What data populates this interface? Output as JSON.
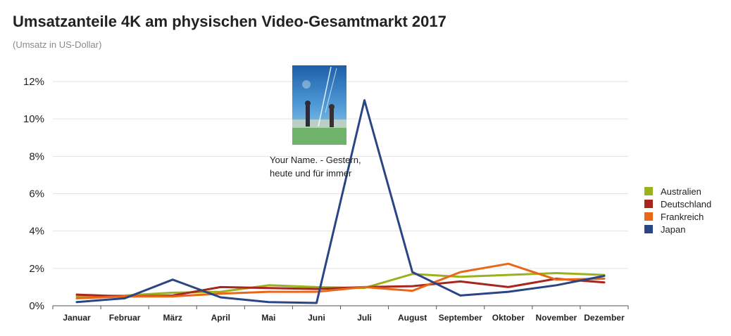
{
  "chart_data": {
    "type": "line",
    "title": "Umsatzanteile 4K am physischen Video-Gesamtmarkt 2017",
    "subtitle": "(Umsatz in US-Dollar)",
    "xlabel": "",
    "ylabel": "",
    "categories": [
      "Januar",
      "Februar",
      "März",
      "April",
      "Mai",
      "Juni",
      "Juli",
      "August",
      "September",
      "Oktober",
      "November",
      "Dezember"
    ],
    "y_ticks": [
      "0%",
      "2%",
      "4%",
      "6%",
      "8%",
      "10%",
      "12%"
    ],
    "ylim": [
      0,
      12
    ],
    "grid": true,
    "legend_position": "right",
    "series": [
      {
        "name": "Australien",
        "color": "#9bb21e",
        "values": [
          0.5,
          0.55,
          0.7,
          0.75,
          1.1,
          1.0,
          0.95,
          1.7,
          1.55,
          1.65,
          1.75,
          1.65
        ]
      },
      {
        "name": "Deutschland",
        "color": "#a8261d",
        "values": [
          0.6,
          0.5,
          0.55,
          1.0,
          0.95,
          0.9,
          1.0,
          1.05,
          1.3,
          1.0,
          1.45,
          1.25
        ]
      },
      {
        "name": "Frankreich",
        "color": "#e8681a",
        "values": [
          0.4,
          0.5,
          0.5,
          0.65,
          0.75,
          0.75,
          1.0,
          0.8,
          1.8,
          2.25,
          1.4,
          1.45
        ]
      },
      {
        "name": "Japan",
        "color": "#2a4586",
        "values": [
          0.2,
          0.4,
          1.4,
          0.45,
          0.2,
          0.15,
          11.0,
          1.8,
          0.55,
          0.75,
          1.1,
          1.6
        ]
      }
    ],
    "annotation": {
      "line1": "Your Name. - Gestern,",
      "line2": "heute und für immer",
      "anchor_category": "Juli",
      "poster_icon": "movie-poster-icon"
    }
  }
}
